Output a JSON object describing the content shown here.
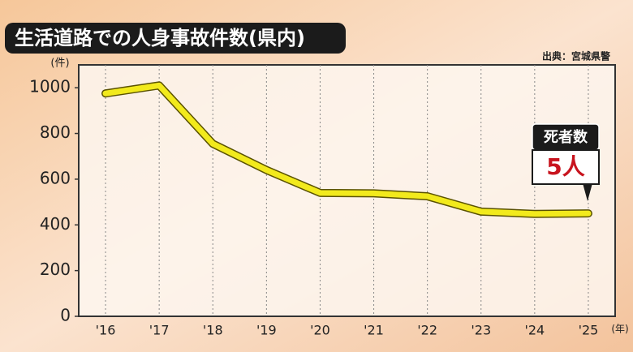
{
  "chart_data": {
    "type": "line",
    "title": "生活道路での人身事故件数(県内)",
    "source": "出典：宮城県警",
    "y_unit": "(件)",
    "x_unit": "(年)",
    "categories": [
      "'16",
      "'17",
      "'18",
      "'19",
      "'20",
      "'21",
      "'22",
      "'23",
      "'24",
      "'25"
    ],
    "series": [
      {
        "name": "人身事故件数",
        "color": "#f2ea1c",
        "values": [
          975,
          1010,
          755,
          640,
          540,
          538,
          525,
          458,
          448,
          450
        ]
      }
    ],
    "ylim": [
      0,
      1100
    ],
    "yticks": [
      0,
      200,
      400,
      600,
      800,
      1000
    ],
    "grid": true,
    "annotation": {
      "label": "死者数",
      "value_text": "5人"
    }
  }
}
